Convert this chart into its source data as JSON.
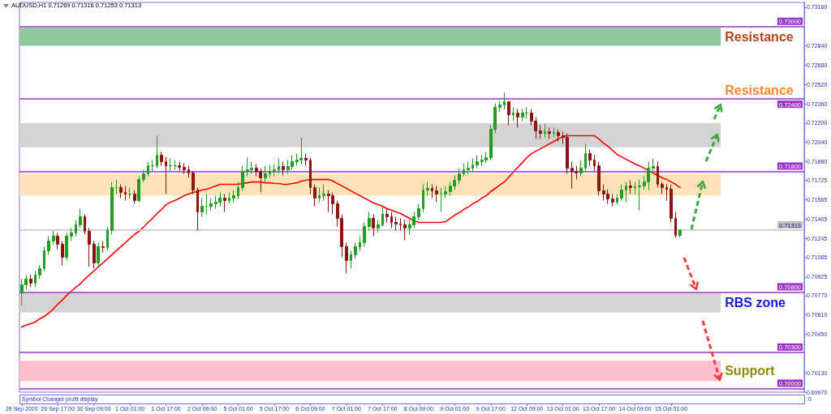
{
  "chart_data": {
    "type": "candlestick",
    "title": "AUDUSD,H1 0.71269 0.71316 0.71253 0.71313",
    "categories": [
      "29 Sep 2020",
      null,
      null,
      null,
      null,
      null,
      null,
      null,
      "29 Sep 17:00",
      null,
      null,
      null,
      null,
      null,
      null,
      null,
      "30 Sep 09:00",
      null,
      null,
      null,
      null,
      null,
      null,
      null,
      "1 Oct 01:00",
      null,
      null,
      null,
      null,
      null,
      null,
      null,
      "1 Oct 17:00",
      null,
      null,
      null,
      null,
      null,
      null,
      null,
      "2 Oct 09:00",
      null,
      null,
      null,
      null,
      null,
      null,
      null,
      "5 Oct 01:00",
      null,
      null,
      null,
      null,
      null,
      null,
      null,
      "5 Oct 17:00",
      null,
      null,
      null,
      null,
      null,
      null,
      null,
      "6 Oct 09:00",
      null,
      null,
      null,
      null,
      null,
      null,
      null,
      "7 Oct 01:00",
      null,
      null,
      null,
      null,
      null,
      null,
      null,
      "7 Oct 17:00",
      null,
      null,
      null,
      null,
      null,
      null,
      null,
      "8 Oct 09:00",
      null,
      null,
      null,
      null,
      null,
      null,
      null,
      "9 Oct 01:00",
      null,
      null,
      null,
      null,
      null,
      null,
      null,
      "9 Oct 17:00",
      null,
      null,
      null,
      null,
      null,
      null,
      null,
      "12 Oct 09:00",
      null,
      null,
      null,
      null,
      null,
      null,
      null,
      "13 Oct 01:00",
      null,
      null,
      null,
      null,
      null,
      null,
      null,
      "13 Oct 17:00",
      null,
      null,
      null,
      null,
      null,
      null,
      null,
      "14 Oct 09:00",
      null,
      null,
      null,
      null,
      null,
      null,
      null,
      "15 Oct 01:00",
      null,
      null,
      null,
      null,
      null,
      null,
      null,
      null,
      null,
      null,
      null,
      null,
      null,
      null,
      null,
      null,
      null,
      null,
      null,
      null,
      null,
      null,
      null,
      null,
      null,
      null,
      null,
      null,
      null
    ],
    "series": [
      {
        "type": "candlestick",
        "ohlc": [
          [
            0.70793,
            0.70908,
            0.70686,
            0.7086
          ],
          [
            0.7086,
            0.70941,
            0.7082,
            0.70908
          ],
          [
            0.70908,
            0.70941,
            0.7084,
            0.70874
          ],
          [
            0.70874,
            0.70974,
            0.7084,
            0.70941
          ],
          [
            0.70941,
            0.71021,
            0.70908,
            0.70995
          ],
          [
            0.70995,
            0.71176,
            0.70974,
            0.71142
          ],
          [
            0.71142,
            0.71263,
            0.71109,
            0.71222
          ],
          [
            0.71222,
            0.7131,
            0.71196,
            0.71263
          ],
          [
            0.71263,
            0.7129,
            0.71155,
            0.71196
          ],
          [
            0.71196,
            0.71222,
            0.71021,
            0.71088
          ],
          [
            0.71088,
            0.7129,
            0.71061,
            0.71263
          ],
          [
            0.71263,
            0.7133,
            0.71222,
            0.7129
          ],
          [
            0.7129,
            0.71397,
            0.71263,
            0.71357
          ],
          [
            0.71357,
            0.71491,
            0.7133,
            0.71424
          ],
          [
            0.71424,
            0.71444,
            0.71276,
            0.71303
          ],
          [
            0.71303,
            0.7133,
            0.71009,
            0.71196
          ],
          [
            0.71196,
            0.71222,
            0.70995,
            0.71041
          ],
          [
            0.71041,
            0.71209,
            0.71009,
            0.71176
          ],
          [
            0.71176,
            0.71222,
            0.71129,
            0.71169
          ],
          [
            0.71169,
            0.71343,
            0.71142,
            0.7131
          ],
          [
            0.7131,
            0.71712,
            0.71276,
            0.71665
          ],
          [
            0.71665,
            0.71732,
            0.71612,
            0.71665
          ],
          [
            0.71665,
            0.71692,
            0.71578,
            0.71625
          ],
          [
            0.71625,
            0.71679,
            0.71558,
            0.71612
          ],
          [
            0.71612,
            0.71665,
            0.71571,
            0.71612
          ],
          [
            0.71612,
            0.71645,
            0.71531,
            0.71558
          ],
          [
            0.71558,
            0.71759,
            0.71544,
            0.71732
          ],
          [
            0.71732,
            0.71813,
            0.71712,
            0.71779
          ],
          [
            0.71779,
            0.7188,
            0.71759,
            0.71846
          ],
          [
            0.71846,
            0.71893,
            0.71799,
            0.71846
          ],
          [
            0.71846,
            0.72095,
            0.71826,
            0.71934
          ],
          [
            0.71934,
            0.71961,
            0.71846,
            0.7188
          ],
          [
            0.7188,
            0.7192,
            0.71612,
            0.71846
          ],
          [
            0.71846,
            0.71907,
            0.71799,
            0.71846
          ],
          [
            0.71846,
            0.71893,
            0.71813,
            0.71846
          ],
          [
            0.71846,
            0.7188,
            0.71799,
            0.71833
          ],
          [
            0.71833,
            0.71867,
            0.71779,
            0.71813
          ],
          [
            0.71813,
            0.71846,
            0.71746,
            0.71786
          ],
          [
            0.71786,
            0.71799,
            0.71612,
            0.71645
          ],
          [
            0.71645,
            0.71665,
            0.7131,
            0.71464
          ],
          [
            0.71464,
            0.71578,
            0.71424,
            0.71511
          ],
          [
            0.71511,
            0.71612,
            0.71444,
            0.71511
          ],
          [
            0.71511,
            0.71578,
            0.71477,
            0.71531
          ],
          [
            0.71531,
            0.71598,
            0.71491,
            0.71544
          ],
          [
            0.71544,
            0.71625,
            0.71511,
            0.71578
          ],
          [
            0.71578,
            0.71612,
            0.71464,
            0.71558
          ],
          [
            0.71558,
            0.71625,
            0.71531,
            0.71578
          ],
          [
            0.71578,
            0.71645,
            0.71544,
            0.71598
          ],
          [
            0.71598,
            0.71712,
            0.71571,
            0.71665
          ],
          [
            0.71665,
            0.71846,
            0.71638,
            0.71799
          ],
          [
            0.71799,
            0.71914,
            0.71759,
            0.71813
          ],
          [
            0.71813,
            0.7188,
            0.71779,
            0.71826
          ],
          [
            0.71826,
            0.7186,
            0.71759,
            0.71799
          ],
          [
            0.71799,
            0.71826,
            0.71625,
            0.71746
          ],
          [
            0.71746,
            0.71846,
            0.71712,
            0.71779
          ],
          [
            0.71779,
            0.71853,
            0.71746,
            0.71799
          ],
          [
            0.71799,
            0.7186,
            0.71759,
            0.71813
          ],
          [
            0.71813,
            0.71907,
            0.71779,
            0.7184
          ],
          [
            0.7184,
            0.7188,
            0.71766,
            0.71813
          ],
          [
            0.71813,
            0.71893,
            0.71779,
            0.7184
          ],
          [
            0.7184,
            0.71934,
            0.71813,
            0.7188
          ],
          [
            0.7188,
            0.71947,
            0.71846,
            0.71893
          ],
          [
            0.71893,
            0.72081,
            0.7186,
            0.71907
          ],
          [
            0.71907,
            0.71947,
            0.71846,
            0.71893
          ],
          [
            0.71893,
            0.71914,
            0.71612,
            0.71665
          ],
          [
            0.71665,
            0.71692,
            0.71511,
            0.71578
          ],
          [
            0.71578,
            0.71665,
            0.71544,
            0.71598
          ],
          [
            0.71598,
            0.71692,
            0.71558,
            0.71612
          ],
          [
            0.71612,
            0.71645,
            0.71464,
            0.71598
          ],
          [
            0.71598,
            0.71625,
            0.71444,
            0.71531
          ],
          [
            0.71531,
            0.71558,
            0.71343,
            0.7141
          ],
          [
            0.7141,
            0.71444,
            0.71088,
            0.71176
          ],
          [
            0.71176,
            0.71209,
            0.70954,
            0.71061
          ],
          [
            0.71061,
            0.71142,
            0.70995,
            0.71109
          ],
          [
            0.71109,
            0.71209,
            0.71075,
            0.71176
          ],
          [
            0.71176,
            0.71263,
            0.71142,
            0.71209
          ],
          [
            0.71209,
            0.71377,
            0.71176,
            0.71343
          ],
          [
            0.71343,
            0.71464,
            0.7131,
            0.7141
          ],
          [
            0.7141,
            0.71444,
            0.71263,
            0.7133
          ],
          [
            0.7133,
            0.71397,
            0.7129,
            0.71357
          ],
          [
            0.71357,
            0.71511,
            0.71343,
            0.71444
          ],
          [
            0.71444,
            0.71491,
            0.71377,
            0.71424
          ],
          [
            0.71424,
            0.71464,
            0.7133,
            0.71377
          ],
          [
            0.71377,
            0.71424,
            0.7131,
            0.71363
          ],
          [
            0.71363,
            0.7141,
            0.7131,
            0.71357
          ],
          [
            0.71357,
            0.71397,
            0.71229,
            0.7133
          ],
          [
            0.7133,
            0.71397,
            0.71276,
            0.71357
          ],
          [
            0.71357,
            0.71464,
            0.7133,
            0.71424
          ],
          [
            0.71424,
            0.71531,
            0.71397,
            0.71491
          ],
          [
            0.71491,
            0.71692,
            0.71464,
            0.71645
          ],
          [
            0.71645,
            0.71712,
            0.71598,
            0.71659
          ],
          [
            0.71659,
            0.71692,
            0.71578,
            0.71638
          ],
          [
            0.71638,
            0.71679,
            0.71544,
            0.71612
          ],
          [
            0.71612,
            0.71665,
            0.71464,
            0.71612
          ],
          [
            0.71612,
            0.71679,
            0.71578,
            0.71632
          ],
          [
            0.71632,
            0.71712,
            0.71598,
            0.71679
          ],
          [
            0.71679,
            0.71766,
            0.71645,
            0.71726
          ],
          [
            0.71726,
            0.71826,
            0.71692,
            0.71779
          ],
          [
            0.71779,
            0.71867,
            0.71759,
            0.71813
          ],
          [
            0.71813,
            0.7188,
            0.71779,
            0.71826
          ],
          [
            0.71826,
            0.71907,
            0.71799,
            0.71853
          ],
          [
            0.71853,
            0.71934,
            0.71826,
            0.7188
          ],
          [
            0.7188,
            0.71934,
            0.71846,
            0.71893
          ],
          [
            0.71893,
            0.71961,
            0.71867,
            0.71914
          ],
          [
            0.71914,
            0.72182,
            0.71893,
            0.72148
          ],
          [
            0.72148,
            0.72363,
            0.72115,
            0.7233
          ],
          [
            0.7233,
            0.72383,
            0.72296,
            0.7235
          ],
          [
            0.7235,
            0.7245,
            0.72316,
            0.72377
          ],
          [
            0.72377,
            0.72383,
            0.72182,
            0.72269
          ],
          [
            0.72269,
            0.7233,
            0.72216,
            0.72283
          ],
          [
            0.72283,
            0.72316,
            0.72162,
            0.72249
          ],
          [
            0.72249,
            0.72316,
            0.72216,
            0.72283
          ],
          [
            0.72283,
            0.7233,
            0.72236,
            0.72283
          ],
          [
            0.72283,
            0.72316,
            0.72182,
            0.72216
          ],
          [
            0.72216,
            0.72249,
            0.72068,
            0.72135
          ],
          [
            0.72135,
            0.72182,
            0.72068,
            0.72115
          ],
          [
            0.72115,
            0.72195,
            0.72081,
            0.72128
          ],
          [
            0.72128,
            0.72162,
            0.72068,
            0.72115
          ],
          [
            0.72115,
            0.72162,
            0.72081,
            0.72122
          ],
          [
            0.72122,
            0.72148,
            0.72048,
            0.72095
          ],
          [
            0.72095,
            0.72128,
            0.72028,
            0.72081
          ],
          [
            0.72081,
            0.72115,
            0.71779,
            0.71826
          ],
          [
            0.71826,
            0.7188,
            0.71659,
            0.71799
          ],
          [
            0.71799,
            0.71846,
            0.71732,
            0.71786
          ],
          [
            0.71786,
            0.71893,
            0.71759,
            0.71826
          ],
          [
            0.71826,
            0.72028,
            0.71799,
            0.71947
          ],
          [
            0.71947,
            0.71981,
            0.71846,
            0.71893
          ],
          [
            0.71893,
            0.71934,
            0.71799,
            0.71846
          ],
          [
            0.71846,
            0.7188,
            0.71598,
            0.71638
          ],
          [
            0.71638,
            0.71692,
            0.71558,
            0.71612
          ],
          [
            0.71612,
            0.71652,
            0.71531,
            0.71571
          ],
          [
            0.71571,
            0.71612,
            0.71511,
            0.71544
          ],
          [
            0.71544,
            0.71612,
            0.71524,
            0.71578
          ],
          [
            0.71578,
            0.71692,
            0.71558,
            0.71645
          ],
          [
            0.71645,
            0.71712,
            0.71544,
            0.71679
          ],
          [
            0.71679,
            0.71726,
            0.71612,
            0.71665
          ],
          [
            0.71665,
            0.71712,
            0.71612,
            0.71672
          ],
          [
            0.71672,
            0.71732,
            0.71477,
            0.71679
          ],
          [
            0.71679,
            0.71759,
            0.71645,
            0.71712
          ],
          [
            0.71712,
            0.7188,
            0.71645,
            0.71826
          ],
          [
            0.71826,
            0.71907,
            0.71779,
            0.7184
          ],
          [
            0.7184,
            0.7188,
            0.71665,
            0.71692
          ],
          [
            0.71692,
            0.71712,
            0.71612,
            0.71665
          ],
          [
            0.71665,
            0.71692,
            0.71558,
            0.71652
          ],
          [
            0.71652,
            0.71692,
            0.71377,
            0.7141
          ],
          [
            0.7141,
            0.71464,
            0.7125,
            0.71269
          ],
          [
            0.71269,
            0.71316,
            0.71253,
            0.71313
          ],
          null,
          null,
          null,
          null,
          null,
          null,
          null,
          null,
          null,
          null,
          null,
          null,
          null,
          null,
          null,
          null,
          null,
          null,
          null,
          null,
          null,
          null,
          null,
          null,
          null,
          null,
          null
        ],
        "colors": [
          "#1f9e1f",
          "#1f9e1f",
          "#8c1414",
          "#1f9e1f",
          "#1f9e1f",
          "#1f9e1f",
          "#1f9e1f",
          "#1f9e1f",
          "#8c1414",
          "#8c1414",
          "#1f9e1f",
          "#1f9e1f",
          "#1f9e1f",
          "#1f9e1f",
          "#8c1414",
          "#8c1414",
          "#8c1414",
          "#1f9e1f",
          "#8c1414",
          "#1f9e1f",
          "#1f9e1f",
          "#1f9e1f",
          "#8c1414",
          "#8c1414",
          "#1f9e1f",
          "#8c1414",
          "#1f9e1f",
          "#1f9e1f",
          "#1f9e1f",
          "#1f9e1f",
          "#1f9e1f",
          "#8c1414",
          "#8c1414",
          "#1f9e1f",
          "#1f9e1f",
          "#8c1414",
          "#8c1414",
          "#8c1414",
          "#8c1414",
          "#8c1414",
          "#1f9e1f",
          "#1f9e1f",
          "#1f9e1f",
          "#1f9e1f",
          "#1f9e1f",
          "#8c1414",
          "#1f9e1f",
          "#1f9e1f",
          "#1f9e1f",
          "#1f9e1f",
          "#1f9e1f",
          "#1f9e1f",
          "#8c1414",
          "#8c1414",
          "#1f9e1f",
          "#1f9e1f",
          "#1f9e1f",
          "#1f9e1f",
          "#8c1414",
          "#1f9e1f",
          "#1f9e1f",
          "#1f9e1f",
          "#1f9e1f",
          "#8c1414",
          "#8c1414",
          "#8c1414",
          "#1f9e1f",
          "#1f9e1f",
          "#8c1414",
          "#8c1414",
          "#8c1414",
          "#8c1414",
          "#8c1414",
          "#1f9e1f",
          "#1f9e1f",
          "#1f9e1f",
          "#1f9e1f",
          "#1f9e1f",
          "#8c1414",
          "#1f9e1f",
          "#1f9e1f",
          "#8c1414",
          "#8c1414",
          "#8c1414",
          "#8c1414",
          "#8c1414",
          "#1f9e1f",
          "#1f9e1f",
          "#1f9e1f",
          "#1f9e1f",
          "#1f9e1f",
          "#8c1414",
          "#8c1414",
          "#1f9e1f",
          "#1f9e1f",
          "#1f9e1f",
          "#1f9e1f",
          "#1f9e1f",
          "#1f9e1f",
          "#1f9e1f",
          "#1f9e1f",
          "#1f9e1f",
          "#1f9e1f",
          "#1f9e1f",
          "#1f9e1f",
          "#1f9e1f",
          "#1f9e1f",
          "#1f9e1f",
          "#8c1414",
          "#1f9e1f",
          "#8c1414",
          "#1f9e1f",
          "#1f9e1f",
          "#8c1414",
          "#8c1414",
          "#8c1414",
          "#1f9e1f",
          "#8c1414",
          "#1f9e1f",
          "#8c1414",
          "#8c1414",
          "#8c1414",
          "#8c1414",
          "#8c1414",
          "#1f9e1f",
          "#1f9e1f",
          "#8c1414",
          "#8c1414",
          "#8c1414",
          "#8c1414",
          "#8c1414",
          "#8c1414",
          "#1f9e1f",
          "#1f9e1f",
          "#1f9e1f",
          "#8c1414",
          "#1f9e1f",
          "#1f9e1f",
          "#1f9e1f",
          "#1f9e1f",
          "#1f9e1f",
          "#8c1414",
          "#8c1414",
          "#8c1414",
          "#8c1414",
          "#8c1414",
          "#1f9e1f",
          null,
          null,
          null,
          null,
          null,
          null,
          null,
          null,
          null,
          null,
          null,
          null,
          null,
          null,
          null,
          null,
          null,
          null,
          null,
          null,
          null,
          null,
          null,
          null,
          null,
          null,
          null
        ]
      },
      {
        "type": "line",
        "color": "#ff0000",
        "values": [
          0.70511,
          0.70525,
          0.70538,
          0.70551,
          0.70578,
          0.70598,
          0.70625,
          0.70659,
          0.70699,
          0.70733,
          0.70773,
          0.70806,
          0.7084,
          0.70867,
          0.70908,
          0.70941,
          0.70974,
          0.71009,
          0.71041,
          0.71075,
          0.71109,
          0.71142,
          0.71176,
          0.71209,
          0.71243,
          0.71276,
          0.71303,
          0.71337,
          0.71377,
          0.7141,
          0.71451,
          0.71484,
          0.71524,
          0.71544,
          0.71558,
          0.71578,
          0.71598,
          0.71612,
          0.71625,
          0.71632,
          0.71645,
          0.71652,
          0.71665,
          0.71679,
          0.71692,
          0.71692,
          0.71692,
          0.71692,
          0.71692,
          0.71699,
          0.71705,
          0.71712,
          0.71712,
          0.71712,
          0.71705,
          0.71705,
          0.71699,
          0.71699,
          0.71692,
          0.71692,
          0.71699,
          0.71705,
          0.71719,
          0.71726,
          0.71732,
          0.71732,
          0.71732,
          0.71732,
          0.71732,
          0.71719,
          0.71699,
          0.71679,
          0.71659,
          0.71638,
          0.71618,
          0.71598,
          0.71578,
          0.71558,
          0.71538,
          0.71524,
          0.71511,
          0.71491,
          0.71477,
          0.71464,
          0.71451,
          0.71431,
          0.7141,
          0.7139,
          0.71377,
          0.71377,
          0.71377,
          0.71377,
          0.71377,
          0.71377,
          0.71383,
          0.7141,
          0.71437,
          0.71457,
          0.71484,
          0.71504,
          0.71531,
          0.71551,
          0.71578,
          0.71598,
          0.71632,
          0.71659,
          0.71686,
          0.71712,
          0.71753,
          0.71793,
          0.71833,
          0.71873,
          0.71914,
          0.71947,
          0.71967,
          0.71987,
          0.72007,
          0.72028,
          0.72048,
          0.72068,
          0.72088,
          0.72095,
          0.72095,
          0.72095,
          0.72095,
          0.72095,
          0.72095,
          0.72095,
          0.72068,
          0.72034,
          0.72007,
          0.71974,
          0.7194,
          0.7192,
          0.719,
          0.7188,
          0.7186,
          0.71846,
          0.71826,
          0.71806,
          0.71786,
          0.71766,
          0.71746,
          0.71732,
          0.71712,
          0.71692,
          0.71665,
          null,
          null,
          null,
          null,
          null,
          null,
          null,
          null,
          null,
          null,
          null,
          null,
          null,
          null,
          null,
          null,
          null,
          null,
          null,
          null,
          null,
          null,
          null,
          null,
          null,
          null,
          null
        ]
      }
    ],
    "ylim": [
      0.6997,
      0.732
    ],
    "yticks": [
      {
        "value": 0.7316,
        "label": "0.73160"
      },
      {
        "value": 0.7284,
        "label": "0.72840"
      },
      {
        "value": 0.7268,
        "label": "0.72680"
      },
      {
        "value": 0.7252,
        "label": "0.72520"
      },
      {
        "value": 0.7236,
        "label": "0.72360"
      },
      {
        "value": 0.722,
        "label": "0.72200"
      },
      {
        "value": 0.7204,
        "label": "0.72040"
      },
      {
        "value": 0.7188,
        "label": "0.71880"
      },
      {
        "value": 0.71725,
        "label": "0.71725"
      },
      {
        "value": 0.71565,
        "label": "0.71565"
      },
      {
        "value": 0.71405,
        "label": "0.71405"
      },
      {
        "value": 0.71245,
        "label": "0.71245"
      },
      {
        "value": 0.71085,
        "label": "0.71085"
      },
      {
        "value": 0.70925,
        "label": "0.70925"
      },
      {
        "value": 0.7077,
        "label": "0.70770"
      },
      {
        "value": 0.7061,
        "label": "0.70610"
      },
      {
        "value": 0.7045,
        "label": "0.70450"
      },
      {
        "value": 0.7013,
        "label": "0.70130"
      },
      {
        "value": 0.6997,
        "label": "0.69970"
      }
    ],
    "ref_lines": [
      {
        "axis": "y",
        "value": 0.73,
        "label": "0.73000",
        "color": "#9933cc"
      },
      {
        "axis": "y",
        "value": 0.724,
        "label": "0.72400",
        "color": "#9933cc"
      },
      {
        "axis": "y",
        "value": 0.718,
        "label": "0.71800",
        "color": "#9933cc"
      },
      {
        "axis": "y",
        "value": 0.71313,
        "label": "0.71313",
        "color": "#c0c0c0"
      },
      {
        "axis": "y",
        "value": 0.708,
        "label": "0.70800",
        "color": "#9933cc"
      },
      {
        "axis": "y",
        "value": 0.703,
        "label": "0.70300",
        "color": "#9933cc"
      },
      {
        "axis": "y",
        "value": 0.7,
        "label": "0.70000",
        "color": "#9933cc"
      }
    ],
    "bands": [
      {
        "axis": "y",
        "from": 0.7284,
        "to": 0.7299,
        "label": "Resistance",
        "color": "#8fc89a"
      },
      {
        "axis": "y",
        "from": 0.72,
        "to": 0.722,
        "color": "#d3d3d3"
      },
      {
        "axis": "y",
        "from": 0.716,
        "to": 0.7178,
        "color": "#fde3b8"
      },
      {
        "axis": "y",
        "from": 0.7063,
        "to": 0.7079,
        "label": "RBS zone",
        "color": "#d3d3d3"
      },
      {
        "axis": "y",
        "from": 0.7006,
        "to": 0.7023,
        "label": "Support",
        "color": "#ffc0cb"
      }
    ],
    "annotations": [
      {
        "text": "Resistance",
        "y": 0.724
      },
      "Symbol Changer profit display",
      "0"
    ]
  }
}
